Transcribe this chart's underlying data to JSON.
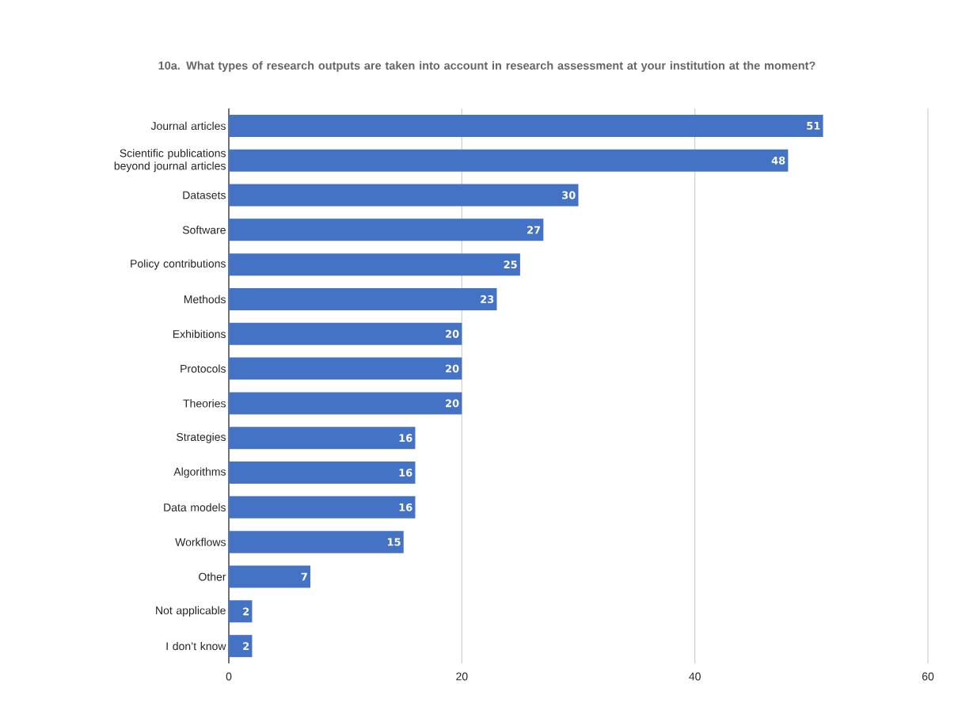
{
  "chart_data": {
    "type": "bar",
    "orientation": "horizontal",
    "title": "10a. What types of research outputs are taken into account in research assessment at your institution at the moment?",
    "categories": [
      "Journal articles",
      "Scientific publications beyond journal articles",
      "Datasets",
      "Software",
      "Policy contributions",
      "Methods",
      "Exhibitions",
      "Protocols",
      "Theories",
      "Strategies",
      "Algorithms",
      "Data models",
      "Workflows",
      "Other",
      "Not applicable",
      "I don’t know"
    ],
    "values": [
      51,
      48,
      30,
      27,
      25,
      23,
      20,
      20,
      20,
      16,
      16,
      16,
      15,
      7,
      2,
      2
    ],
    "color": "#4472c4",
    "xlim": [
      0,
      60
    ],
    "xticks": [
      0,
      20,
      40,
      60
    ],
    "grid": "x",
    "data_labels": true
  }
}
